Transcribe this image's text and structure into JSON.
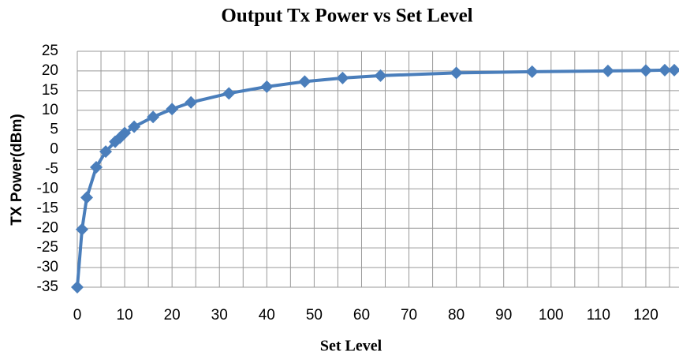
{
  "chart_data": {
    "type": "line",
    "title": "Output Tx Power vs Set Level",
    "x_label": "Set Level",
    "y_label": "TX Power(dBm)",
    "x": [
      0,
      1,
      2,
      4,
      6,
      8,
      9,
      10,
      12,
      16,
      20,
      24,
      32,
      40,
      48,
      56,
      64,
      80,
      96,
      112,
      120,
      124,
      126
    ],
    "series": [
      {
        "name": "Tx Power",
        "color": "#4a7ebb",
        "values": [
          -35,
          -20.3,
          -12.2,
          -4.5,
          -0.5,
          2,
          3,
          4.2,
          5.8,
          8.3,
          10.3,
          12,
          14.3,
          16,
          17.3,
          18.2,
          18.8,
          19.5,
          19.8,
          20,
          20.1,
          20.2,
          20.2
        ]
      }
    ],
    "xlim": [
      0,
      127
    ],
    "ylim": [
      -35,
      25
    ],
    "xticks": [
      0,
      10,
      20,
      30,
      40,
      50,
      60,
      70,
      80,
      90,
      100,
      110,
      120
    ],
    "xgrid": [
      0,
      5,
      10,
      15,
      20,
      25,
      30,
      35,
      40,
      45,
      50,
      55,
      60,
      65,
      70,
      75,
      80,
      85,
      90,
      95,
      100,
      105,
      110,
      115,
      120,
      125
    ],
    "yticks": [
      -35,
      -30,
      -25,
      -20,
      -15,
      -10,
      -5,
      0,
      5,
      10,
      15,
      20,
      25
    ],
    "grid": true,
    "marker": "diamond"
  }
}
